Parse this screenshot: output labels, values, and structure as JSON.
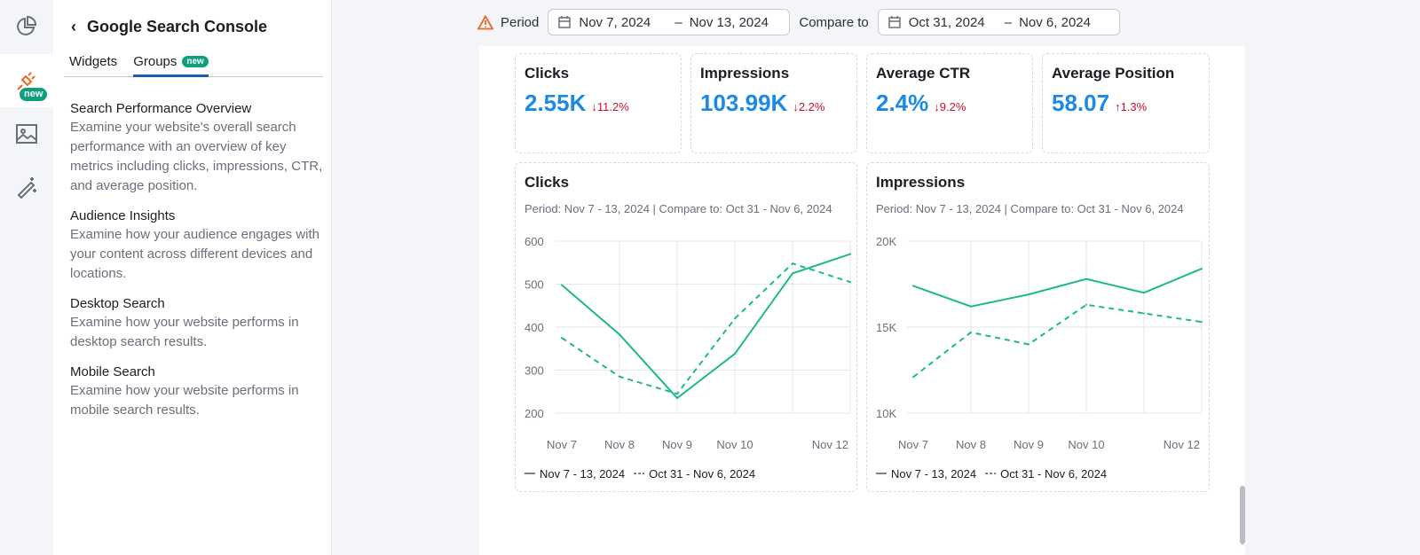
{
  "sidebar": {
    "title": "Google Search Console",
    "tabs": [
      "Widgets",
      "Groups"
    ],
    "new_badge": "new",
    "groups": [
      {
        "name": "Search Performance Overview",
        "desc": "Examine your website's overall search performance with an overview of key metrics including clicks, impressions, CTR, and average position."
      },
      {
        "name": "Audience Insights",
        "desc": "Examine how your audience engages with your content across different devices and locations."
      },
      {
        "name": "Desktop Search",
        "desc": "Examine how your website performs in desktop search results."
      },
      {
        "name": "Mobile Search",
        "desc": "Examine how your website performs in mobile search results."
      }
    ]
  },
  "rail": {
    "new_badge": "new"
  },
  "topbar": {
    "period_label": "Period",
    "period_start": "Nov 7, 2024",
    "period_end": "Nov 13, 2024",
    "compare_label": "Compare to",
    "compare_start": "Oct 31, 2024",
    "compare_end": "Nov 6, 2024",
    "dash": "–"
  },
  "kpis": [
    {
      "label": "Clicks",
      "value": "2.55K",
      "change": "↓11.2%"
    },
    {
      "label": "Impressions",
      "value": "103.99K",
      "change": "↓2.2%"
    },
    {
      "label": "Average CTR",
      "value": "2.4%",
      "change": "↓9.2%"
    },
    {
      "label": "Average Position",
      "value": "58.07",
      "change": "↑1.3%"
    }
  ],
  "colors": {
    "line": "#1db88e",
    "accent": "#1b8ae6",
    "negative": "#c8102e"
  },
  "chart_data": [
    {
      "type": "line",
      "title": "Clicks",
      "subtitle": "Period: Nov 7 - 13, 2024 | Compare to: Oct 31 - Nov 6, 2024",
      "x": [
        "Nov 7",
        "Nov 8",
        "Nov 9",
        "Nov 10",
        "Nov 11",
        "Nov 12"
      ],
      "x_tick_labels": [
        "Nov 7",
        "Nov 8",
        "Nov 9",
        "Nov 10",
        "",
        "Nov 12"
      ],
      "yticks": [
        200,
        300,
        400,
        500,
        600
      ],
      "ytick_labels": [
        "200",
        "300",
        "400",
        "500",
        "600"
      ],
      "ylim": [
        200,
        600
      ],
      "series": [
        {
          "name": "Nov 7 - 13, 2024",
          "style": "solid",
          "values": [
            498,
            383,
            235,
            338,
            525,
            570
          ]
        },
        {
          "name": "Oct 31 - Nov 6, 2024",
          "style": "dashed",
          "values": [
            375,
            285,
            245,
            420,
            548,
            505
          ]
        }
      ],
      "legend": "bottom-left"
    },
    {
      "type": "line",
      "title": "Impressions",
      "subtitle": "Period: Nov 7 - 13, 2024 | Compare to: Oct 31 - Nov 6, 2024",
      "x": [
        "Nov 7",
        "Nov 8",
        "Nov 9",
        "Nov 10",
        "Nov 11",
        "Nov 12"
      ],
      "x_tick_labels": [
        "Nov 7",
        "Nov 8",
        "Nov 9",
        "Nov 10",
        "",
        "Nov 12"
      ],
      "yticks": [
        10000,
        15000,
        20000
      ],
      "ytick_labels": [
        "10K",
        "15K",
        "20K"
      ],
      "ylim": [
        10000,
        20000
      ],
      "series": [
        {
          "name": "Nov 7 - 13, 2024",
          "style": "solid",
          "values": [
            17400,
            16200,
            16900,
            17800,
            17000,
            18400
          ]
        },
        {
          "name": "Oct 31 - Nov 6, 2024",
          "style": "dashed",
          "values": [
            12100,
            14700,
            14000,
            16300,
            15800,
            15300
          ]
        }
      ],
      "legend": "bottom-left"
    }
  ]
}
